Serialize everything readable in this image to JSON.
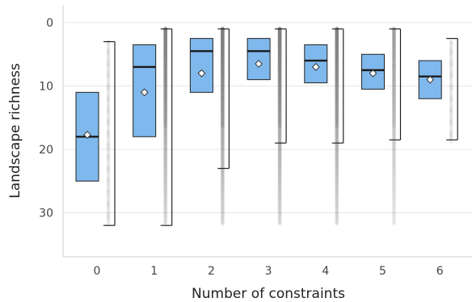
{
  "chart_data": {
    "type": "box",
    "xlabel": "Number of constraints",
    "ylabel": "Landscape richness",
    "y_inverted": true,
    "ylim": [
      0,
      36
    ],
    "yticks": [
      0,
      10,
      20,
      30
    ],
    "grid": "horizontal",
    "colors": {
      "box_fill": "#7fb8ec",
      "box_edge": "#222222",
      "mean_marker": "#ffffff",
      "outliers": "#777777",
      "grid": "#e6e6e6"
    },
    "categories": [
      "0",
      "1",
      "2",
      "3",
      "4",
      "5",
      "6"
    ],
    "boxes": [
      {
        "category": "0",
        "whisker_low": 3,
        "q1": 11,
        "median": 18,
        "mean": 17.7,
        "q3": 25,
        "whisker_high": 32,
        "outliers_from": null,
        "outlier_density": 0.0
      },
      {
        "category": "1",
        "whisker_low": 1,
        "q1": 3.5,
        "median": 7,
        "mean": 11,
        "q3": 18,
        "whisker_high": 32,
        "outliers_from": 1,
        "outlier_density": 0.8
      },
      {
        "category": "2",
        "whisker_low": 1,
        "q1": 2.5,
        "median": 4.5,
        "mean": 8,
        "q3": 11,
        "whisker_high": 23,
        "outliers_from": 1,
        "outlier_density": 0.85
      },
      {
        "category": "3",
        "whisker_low": 1,
        "q1": 2.5,
        "median": 4.5,
        "mean": 6.5,
        "q3": 9,
        "whisker_high": 19,
        "outliers_from": 1,
        "outlier_density": 0.85
      },
      {
        "category": "4",
        "whisker_low": 1,
        "q1": 3.5,
        "median": 6,
        "mean": 7,
        "q3": 9.5,
        "whisker_high": 19,
        "outliers_from": 1,
        "outlier_density": 0.8
      },
      {
        "category": "5",
        "whisker_low": 1,
        "q1": 5,
        "median": 7.5,
        "mean": 8,
        "q3": 10.5,
        "whisker_high": 18.5,
        "outliers_from": 1,
        "outlier_density": 0.5
      },
      {
        "category": "6",
        "whisker_low": 2.5,
        "q1": 6,
        "median": 8.5,
        "mean": 9,
        "q3": 12,
        "whisker_high": 18.5,
        "outliers_from": null,
        "outlier_density": 0.0
      }
    ],
    "faint_points": [
      {
        "category": "0",
        "from": 3,
        "to": 32
      },
      {
        "category": "6",
        "from": 3,
        "to": 19
      }
    ]
  }
}
